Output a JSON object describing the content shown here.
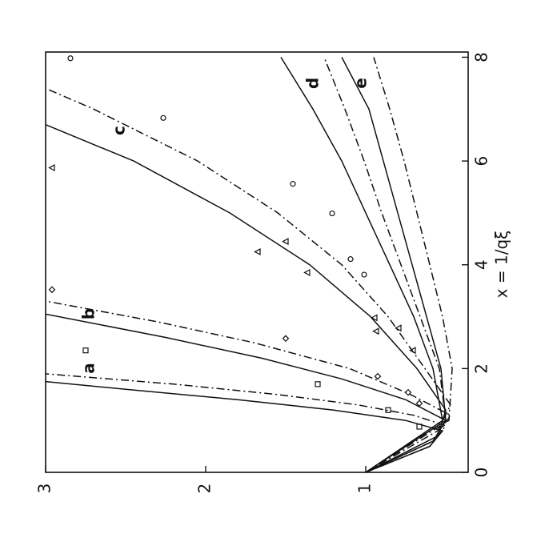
{
  "chart_data": {
    "type": "line",
    "x_label": "x = 1/qξ",
    "xlim": [
      0,
      8.1
    ],
    "xticks": [
      0,
      2,
      4,
      6,
      8
    ],
    "ylim": [
      0.36,
      3
    ],
    "yticks": [
      1,
      2,
      3
    ],
    "curve_labels": [
      "a",
      "b",
      "c",
      "d",
      "e"
    ],
    "series": [
      {
        "style": "solid",
        "x": [
          0,
          0.5,
          0.8,
          1.0,
          1.2,
          1.4,
          1.6,
          1.75
        ],
        "values": [
          1,
          0.6,
          0.52,
          0.75,
          1.2,
          1.8,
          2.5,
          3
        ]
      },
      {
        "style": "dashdot",
        "x": [
          0,
          0.5,
          0.9,
          1.1,
          1.3,
          1.5,
          1.7,
          1.9
        ],
        "values": [
          1,
          0.6,
          0.5,
          0.7,
          1.05,
          1.55,
          2.2,
          3
        ]
      },
      {
        "style": "solid",
        "x": [
          0,
          0.6,
          1.0,
          1.4,
          1.8,
          2.2,
          2.6,
          3.05
        ],
        "values": [
          1,
          0.58,
          0.5,
          0.75,
          1.15,
          1.65,
          2.25,
          3
        ]
      },
      {
        "style": "dashdot",
        "x": [
          0,
          0.6,
          1.1,
          1.5,
          2.0,
          2.5,
          2.9,
          3.3
        ],
        "values": [
          1,
          0.58,
          0.47,
          0.72,
          1.1,
          1.7,
          2.3,
          3
        ]
      },
      {
        "style": "solid",
        "x": [
          0,
          0.7,
          1.2,
          2,
          3,
          4,
          5,
          6,
          6.7
        ],
        "values": [
          1,
          0.55,
          0.5,
          0.68,
          0.97,
          1.35,
          1.85,
          2.45,
          3
        ]
      },
      {
        "style": "dashdot",
        "x": [
          0,
          0.8,
          1.3,
          2,
          3,
          4,
          5,
          6,
          7,
          7.4
        ],
        "values": [
          1,
          0.55,
          0.47,
          0.63,
          0.86,
          1.15,
          1.55,
          2.05,
          2.7,
          3
        ]
      },
      {
        "style": "solid",
        "x": [
          0,
          1,
          2,
          3,
          4,
          5,
          6,
          7,
          8
        ],
        "values": [
          1,
          0.52,
          0.58,
          0.7,
          0.85,
          1.0,
          1.15,
          1.33,
          1.53
        ]
      },
      {
        "style": "dashdot",
        "x": [
          0,
          1,
          2,
          3,
          4,
          5,
          6,
          7,
          8
        ],
        "values": [
          1,
          0.5,
          0.54,
          0.66,
          0.78,
          0.9,
          1.01,
          1.13,
          1.26
        ]
      },
      {
        "style": "solid",
        "x": [
          0,
          1,
          2,
          3,
          4,
          5,
          6,
          7,
          8
        ],
        "values": [
          1,
          0.5,
          0.53,
          0.62,
          0.71,
          0.8,
          0.89,
          0.98,
          1.15
        ]
      },
      {
        "style": "dashdot",
        "x": [
          0,
          1,
          2,
          3,
          4,
          5,
          6,
          7,
          8
        ],
        "values": [
          1,
          0.48,
          0.46,
          0.52,
          0.6,
          0.68,
          0.76,
          0.85,
          0.95
        ]
      }
    ],
    "points": [
      {
        "marker": "square",
        "x": [
          2.35,
          1.7,
          1.2,
          0.88
        ],
        "values": [
          2.75,
          1.3,
          0.86,
          0.665
        ]
      },
      {
        "marker": "diamond",
        "x": [
          3.52,
          2.58,
          1.85,
          1.54,
          1.33
        ],
        "values": [
          2.96,
          1.5,
          0.925,
          0.735,
          0.665
        ]
      },
      {
        "marker": "triangle",
        "x": [
          5.87,
          4.25,
          4.45,
          3.85,
          2.72,
          2.98,
          2.78,
          2.35
        ],
        "values": [
          2.96,
          1.675,
          1.5,
          1.365,
          0.935,
          0.945,
          0.795,
          0.705
        ]
      },
      {
        "marker": "circle",
        "x": [
          7.98,
          6.83,
          5.56,
          4.99,
          4.11,
          3.81
        ],
        "values": [
          2.845,
          2.265,
          1.455,
          1.21,
          1.095,
          1.01
        ]
      }
    ]
  }
}
